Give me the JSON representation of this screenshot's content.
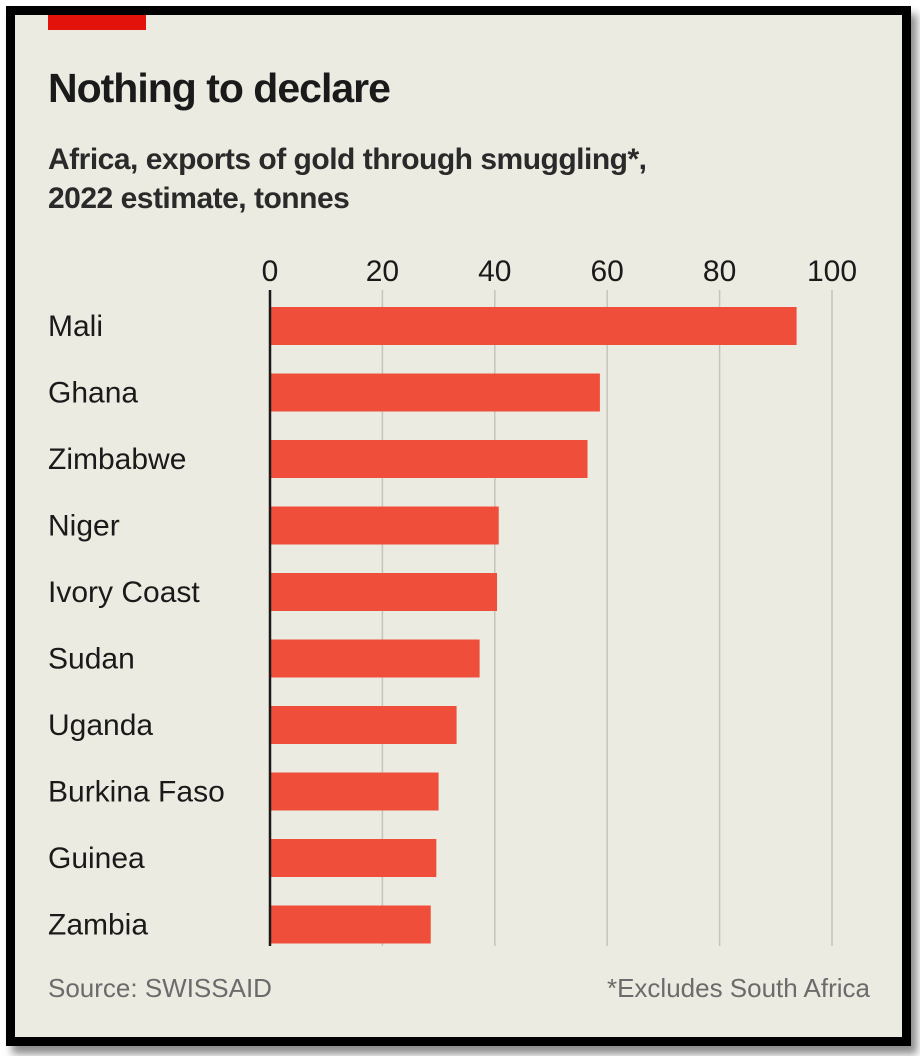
{
  "header": {
    "title": "Nothing to declare",
    "subtitle_line1": "Africa, exports of gold through smuggling*,",
    "subtitle_line2": "2022 estimate, tonnes"
  },
  "footer": {
    "source": "Source: SWISSAID",
    "note": "*Excludes South Africa"
  },
  "colors": {
    "bar": "#ef4f3a",
    "background": "#ecebe1",
    "accent_tag": "#e3120b",
    "gridline": "#c4c4bc",
    "axis": "#1a1a1a"
  },
  "chart_data": {
    "type": "bar",
    "orientation": "horizontal",
    "title": "Nothing to declare",
    "subtitle": "Africa, exports of gold through smuggling*, 2022 estimate, tonnes",
    "xlabel": "",
    "ylabel": "",
    "categories": [
      "Mali",
      "Ghana",
      "Zimbabwe",
      "Niger",
      "Ivory Coast",
      "Sudan",
      "Uganda",
      "Burkina Faso",
      "Guinea",
      "Zambia"
    ],
    "values": [
      93.7,
      58.7,
      56.5,
      40.7,
      40.4,
      37.3,
      33.2,
      30.0,
      29.6,
      28.6
    ],
    "xlim": [
      0,
      100
    ],
    "xticks": [
      0,
      20,
      40,
      60,
      80,
      100
    ],
    "xtick_labels": [
      "0",
      "20",
      "40",
      "60",
      "80",
      "100"
    ],
    "tick_position": "top",
    "grid": true,
    "legend": "none",
    "source": "Source: SWISSAID",
    "note": "*Excludes South Africa"
  }
}
